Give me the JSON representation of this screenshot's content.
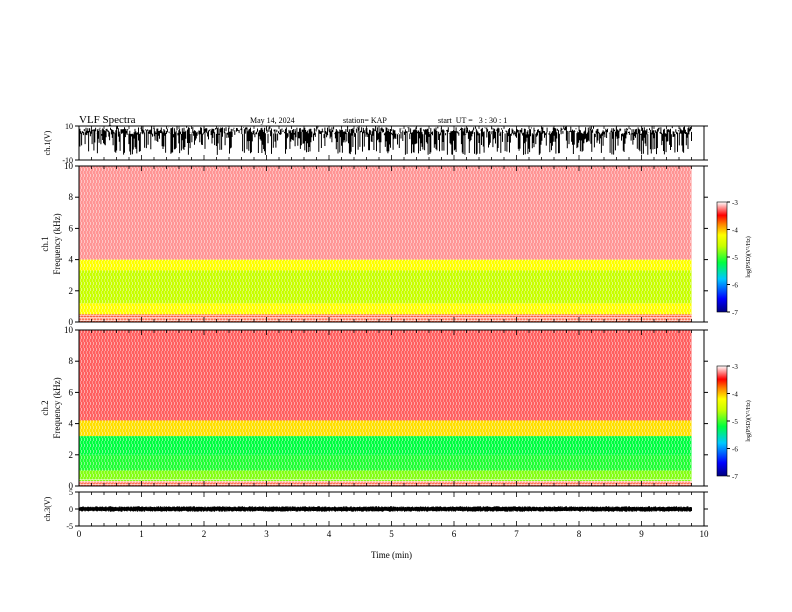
{
  "header": {
    "title": "VLF Spectra",
    "date": "May 14, 2024",
    "station": "station= KAP",
    "start_time": "start  UT =   3 : 30 : 1"
  },
  "chart_data": [
    {
      "type": "line",
      "panel": "waveform",
      "ylabel": "ch.1(V)",
      "ylim": [
        -10,
        10
      ],
      "yticklabels": [
        "10",
        "-10"
      ],
      "x_extent_min": [
        0,
        9.8
      ],
      "amplitude_envelope_V": [
        -10,
        10
      ],
      "color": "#000000"
    },
    {
      "type": "heatmap",
      "panel": "spectrogram",
      "ylabel": "ch.1\nFrequency (kHz)",
      "ylim": [
        0,
        10
      ],
      "yticks": [
        0,
        2,
        4,
        6,
        8,
        10
      ],
      "x_extent_min": [
        0,
        9.8
      ],
      "colorbar": {
        "label": "log(PSD)(V²/Hz)",
        "range": [
          -7,
          -3
        ],
        "ticks": [
          -3,
          -4,
          -5,
          -6,
          -7
        ]
      },
      "bands_kHz": [
        {
          "from": 0.5,
          "to": 1.2,
          "level": -4.2
        },
        {
          "from": 1.2,
          "to": 3.3,
          "level": -4.6
        },
        {
          "from": 3.3,
          "to": 4.0,
          "level": -4.2
        },
        {
          "from": 4.0,
          "to": 10.0,
          "level": -3.2
        }
      ]
    },
    {
      "type": "heatmap",
      "panel": "spectrogram",
      "ylabel": "ch.2\nFrequency (kHz)",
      "ylim": [
        0,
        10
      ],
      "yticks": [
        0,
        2,
        4,
        6,
        8,
        10
      ],
      "x_extent_min": [
        0,
        9.8
      ],
      "colorbar": {
        "label": "log(PSD)(V²/Hz)",
        "range": [
          -7,
          -3
        ],
        "ticks": [
          -3,
          -4,
          -5,
          -6,
          -7
        ]
      },
      "bands_kHz": [
        {
          "from": 0.3,
          "to": 1.0,
          "level": -4.8
        },
        {
          "from": 1.0,
          "to": 2.0,
          "level": -5.1
        },
        {
          "from": 2.0,
          "to": 3.2,
          "level": -5.2
        },
        {
          "from": 3.2,
          "to": 4.2,
          "level": -4.1
        },
        {
          "from": 4.2,
          "to": 10.0,
          "level": -3.3
        }
      ]
    },
    {
      "type": "line",
      "panel": "waveform",
      "ylabel": "ch.3(V)",
      "ylim": [
        -5,
        5
      ],
      "yticklabels": [
        "5",
        "0",
        "-5"
      ],
      "x_extent_min": [
        0,
        9.8
      ],
      "amplitude_envelope_V": [
        -0.8,
        0.8
      ],
      "color": "#000000"
    }
  ],
  "xaxis": {
    "label": "Time (min)",
    "ticks": [
      0,
      1,
      2,
      3,
      4,
      5,
      6,
      7,
      8,
      9,
      10
    ],
    "range": [
      0,
      10
    ]
  }
}
